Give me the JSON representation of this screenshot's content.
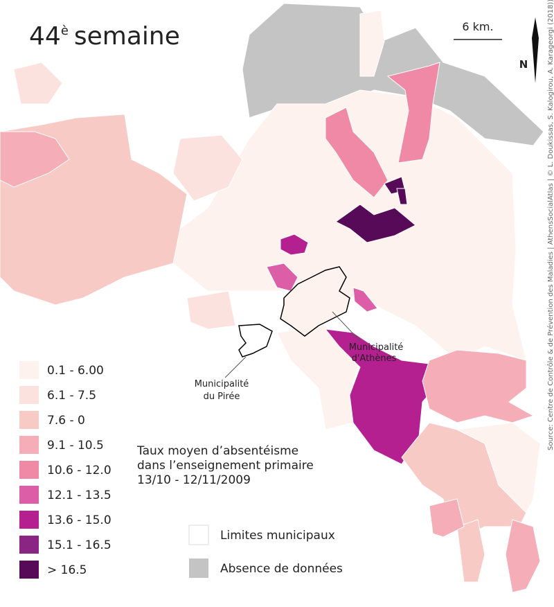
{
  "title": {
    "number": "44",
    "sup": "è",
    "text": "semaine"
  },
  "scale": {
    "label": "6 km."
  },
  "north": "N",
  "source": "Source: Centre de Contrôle & de Prévention des Maladies | AthensSocialAtlas | © L. Doukissas, S. Kalogirou, A. Karageorgi (2018))",
  "annotations": {
    "athens": [
      "Municipalité",
      "d'Athènes"
    ],
    "piraeus": [
      "Municipalité",
      "du Pirée"
    ]
  },
  "subtitle": [
    "Taux moyen d’absentéisme",
    "dans l’enseignement primaire",
    "13/10 - 12/11/2009"
  ],
  "legend": {
    "items": [
      {
        "label": "0.1 - 6.00",
        "color": "#fdf2ee"
      },
      {
        "label": "6.1 - 7.5",
        "color": "#fbe2df"
      },
      {
        "label": "7.6 - 0",
        "color": "#f8cac5"
      },
      {
        "label": "9.1 - 10.5",
        "color": "#f5aeb8"
      },
      {
        "label": "10.6 - 12.0",
        "color": "#f089a6"
      },
      {
        "label": "12.1 - 13.5",
        "color": "#db5ea7"
      },
      {
        "label": "13.6 - 15.0",
        "color": "#b52090"
      },
      {
        "label": "15.1 - 16.5",
        "color": "#8a2584"
      },
      {
        "label": "> 16.5",
        "color": "#570a57"
      }
    ],
    "boundaries": {
      "label": "Limites municipaux",
      "color": "#ffffff"
    },
    "no_data": {
      "label": "Absence de données",
      "color": "#c4c4c4"
    }
  }
}
